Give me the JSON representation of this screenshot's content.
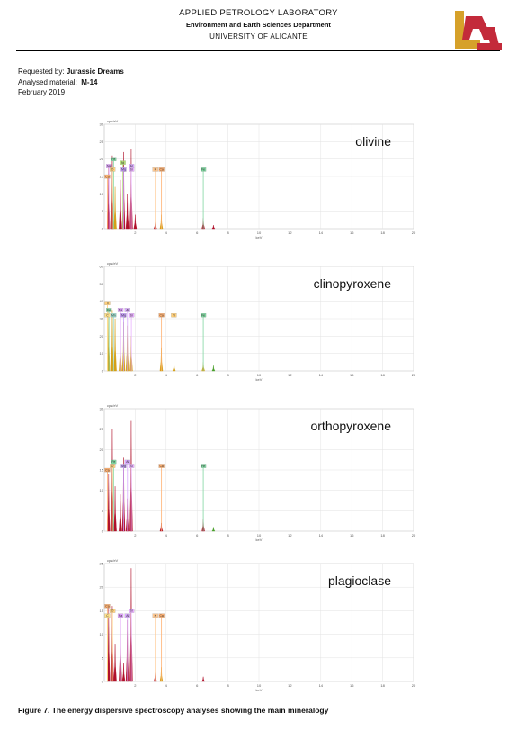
{
  "header": {
    "line1": "APPLIED PETROLOGY LABORATORY",
    "line2": "Environment and Earth Sciences Department",
    "line3": "UNIVERSITY OF ALICANTE"
  },
  "meta": {
    "requested_label": "Requested by:",
    "requested_value": "Jurassic Dreams",
    "material_label": "Analysed material:",
    "material_value": "M-14",
    "date": "February 2019"
  },
  "caption": "Figure 7. The energy dispersive spectroscopy analyses showing the main mineralogy",
  "colors": {
    "red": "#b0102a",
    "gold": "#d4a017",
    "green": "#4aa02c"
  },
  "chart_data": [
    {
      "type": "line",
      "title": "olivine",
      "ylabel": "cps/eV",
      "xlabel": "keV",
      "xlim": [
        0,
        20
      ],
      "ylim": [
        0,
        30
      ],
      "yticks": [
        0,
        5,
        10,
        15,
        20,
        25,
        30
      ],
      "xticks": [
        2,
        4,
        6,
        8,
        10,
        12,
        14,
        16,
        18,
        20
      ],
      "peaks": [
        {
          "x": 0.28,
          "y": 18,
          "c": "red"
        },
        {
          "x": 0.52,
          "y": 21,
          "c": "red"
        },
        {
          "x": 0.7,
          "y": 12,
          "c": "gold"
        },
        {
          "x": 1.04,
          "y": 14,
          "c": "red"
        },
        {
          "x": 1.25,
          "y": 22,
          "c": "red"
        },
        {
          "x": 1.49,
          "y": 10,
          "c": "red"
        },
        {
          "x": 1.74,
          "y": 23,
          "c": "red"
        },
        {
          "x": 2.0,
          "y": 4,
          "c": "red"
        },
        {
          "x": 3.3,
          "y": 2,
          "c": "red"
        },
        {
          "x": 3.69,
          "y": 4,
          "c": "gold"
        },
        {
          "x": 6.4,
          "y": 3,
          "c": "red"
        },
        {
          "x": 7.06,
          "y": 1,
          "c": "red"
        }
      ],
      "labels": [
        {
          "t": "Fe",
          "x": 0.6,
          "y": 20,
          "k": "fe"
        },
        {
          "t": "Ni",
          "x": 1.2,
          "y": 19,
          "k": "ni"
        },
        {
          "t": "Na",
          "x": 0.3,
          "y": 18,
          "k": "na"
        },
        {
          "t": "Mg",
          "x": 1.25,
          "y": 17,
          "k": "mg"
        },
        {
          "t": "Al",
          "x": 1.75,
          "y": 18,
          "k": "al"
        },
        {
          "t": "O",
          "x": 0.53,
          "y": 17,
          "k": "o"
        },
        {
          "t": "Ca",
          "x": 0.2,
          "y": 15,
          "k": "ca"
        },
        {
          "t": "Si",
          "x": 1.75,
          "y": 17,
          "k": "si"
        },
        {
          "t": "K",
          "x": 3.3,
          "y": 17,
          "k": "k"
        },
        {
          "t": "Ca",
          "x": 3.7,
          "y": 17,
          "k": "ca"
        },
        {
          "t": "Fe",
          "x": 6.4,
          "y": 17,
          "k": "fe"
        }
      ]
    },
    {
      "type": "line",
      "title": "clinopyroxene",
      "ylabel": "cps/eV",
      "xlabel": "keV",
      "xlim": [
        0,
        20
      ],
      "ylim": [
        0,
        60
      ],
      "yticks": [
        0,
        10,
        20,
        30,
        40,
        50,
        60
      ],
      "xticks": [
        2,
        4,
        6,
        8,
        10,
        12,
        14,
        16,
        18,
        20
      ],
      "peaks": [
        {
          "x": 0.28,
          "y": 34,
          "c": "gold"
        },
        {
          "x": 0.52,
          "y": 35,
          "c": "gold"
        },
        {
          "x": 0.7,
          "y": 30,
          "c": "gold"
        },
        {
          "x": 1.04,
          "y": 22,
          "c": "gold"
        },
        {
          "x": 1.25,
          "y": 28,
          "c": "gold"
        },
        {
          "x": 1.49,
          "y": 26,
          "c": "gold"
        },
        {
          "x": 1.74,
          "y": 20,
          "c": "gold"
        },
        {
          "x": 3.69,
          "y": 13,
          "c": "gold"
        },
        {
          "x": 4.51,
          "y": 4,
          "c": "gold"
        },
        {
          "x": 6.4,
          "y": 5,
          "c": "gold"
        },
        {
          "x": 7.06,
          "y": 3,
          "c": "green"
        }
      ],
      "labels": [
        {
          "t": "Ti",
          "x": 0.2,
          "y": 39,
          "k": "ti"
        },
        {
          "t": "Fe",
          "x": 0.3,
          "y": 35,
          "k": "fe"
        },
        {
          "t": "Na",
          "x": 1.05,
          "y": 35,
          "k": "na"
        },
        {
          "t": "Al",
          "x": 1.5,
          "y": 35,
          "k": "al"
        },
        {
          "t": "C",
          "x": 0.2,
          "y": 32,
          "k": "c"
        },
        {
          "t": "Mn",
          "x": 0.6,
          "y": 32,
          "k": "mn"
        },
        {
          "t": "Mg",
          "x": 1.25,
          "y": 32,
          "k": "mg"
        },
        {
          "t": "Si",
          "x": 1.75,
          "y": 32,
          "k": "si"
        },
        {
          "t": "Ca",
          "x": 3.7,
          "y": 32,
          "k": "ca"
        },
        {
          "t": "Ti",
          "x": 4.5,
          "y": 32,
          "k": "ti"
        },
        {
          "t": "Fe",
          "x": 6.4,
          "y": 32,
          "k": "fe"
        }
      ]
    },
    {
      "type": "line",
      "title": "orthopyroxene",
      "ylabel": "cps/eV",
      "xlabel": "keV",
      "xlim": [
        0,
        20
      ],
      "ylim": [
        0,
        30
      ],
      "yticks": [
        0,
        5,
        10,
        15,
        20,
        25,
        30
      ],
      "xticks": [
        2,
        4,
        6,
        8,
        10,
        12,
        14,
        16,
        18,
        20
      ],
      "peaks": [
        {
          "x": 0.28,
          "y": 14,
          "c": "red"
        },
        {
          "x": 0.52,
          "y": 25,
          "c": "red"
        },
        {
          "x": 0.7,
          "y": 11,
          "c": "red"
        },
        {
          "x": 1.04,
          "y": 9,
          "c": "red"
        },
        {
          "x": 1.25,
          "y": 18,
          "c": "red"
        },
        {
          "x": 1.49,
          "y": 8,
          "c": "red"
        },
        {
          "x": 1.74,
          "y": 27,
          "c": "red"
        },
        {
          "x": 3.69,
          "y": 2,
          "c": "red"
        },
        {
          "x": 6.4,
          "y": 3,
          "c": "red"
        },
        {
          "x": 7.06,
          "y": 1,
          "c": "green"
        }
      ],
      "labels": [
        {
          "t": "Fe",
          "x": 0.6,
          "y": 17,
          "k": "fe"
        },
        {
          "t": "Al",
          "x": 1.5,
          "y": 17,
          "k": "al"
        },
        {
          "t": "O",
          "x": 0.53,
          "y": 16,
          "k": "o"
        },
        {
          "t": "Mg",
          "x": 1.25,
          "y": 16,
          "k": "mg"
        },
        {
          "t": "Si",
          "x": 1.75,
          "y": 16,
          "k": "si"
        },
        {
          "t": "Ca",
          "x": 0.2,
          "y": 15,
          "k": "ca"
        },
        {
          "t": "Ca",
          "x": 3.7,
          "y": 16,
          "k": "ca"
        },
        {
          "t": "Fe",
          "x": 6.4,
          "y": 16,
          "k": "fe"
        }
      ]
    },
    {
      "type": "line",
      "title": "plagioclase",
      "ylabel": "cps/eV",
      "xlabel": "keV",
      "xlim": [
        0,
        20
      ],
      "ylim": [
        0,
        25
      ],
      "yticks": [
        0,
        5,
        10,
        15,
        20,
        25
      ],
      "xticks": [
        2,
        4,
        6,
        8,
        10,
        12,
        14,
        16,
        18,
        20
      ],
      "peaks": [
        {
          "x": 0.28,
          "y": 16,
          "c": "red"
        },
        {
          "x": 0.52,
          "y": 16,
          "c": "red"
        },
        {
          "x": 0.7,
          "y": 8,
          "c": "red"
        },
        {
          "x": 1.04,
          "y": 14,
          "c": "red"
        },
        {
          "x": 1.25,
          "y": 4,
          "c": "red"
        },
        {
          "x": 1.49,
          "y": 13,
          "c": "red"
        },
        {
          "x": 1.74,
          "y": 24,
          "c": "red"
        },
        {
          "x": 3.3,
          "y": 2,
          "c": "red"
        },
        {
          "x": 3.69,
          "y": 3,
          "c": "gold"
        },
        {
          "x": 6.4,
          "y": 1,
          "c": "red"
        }
      ],
      "labels": [
        {
          "t": "Ca",
          "x": 0.2,
          "y": 16,
          "k": "ca"
        },
        {
          "t": "O",
          "x": 0.53,
          "y": 15,
          "k": "o"
        },
        {
          "t": "Si",
          "x": 1.75,
          "y": 15,
          "k": "si"
        },
        {
          "t": "C",
          "x": 0.2,
          "y": 14,
          "k": "c"
        },
        {
          "t": "Na",
          "x": 1.05,
          "y": 14,
          "k": "na"
        },
        {
          "t": "Al",
          "x": 1.5,
          "y": 14,
          "k": "al"
        },
        {
          "t": "K",
          "x": 3.3,
          "y": 14,
          "k": "k"
        },
        {
          "t": "Ca",
          "x": 3.7,
          "y": 14,
          "k": "ca"
        }
      ]
    }
  ]
}
